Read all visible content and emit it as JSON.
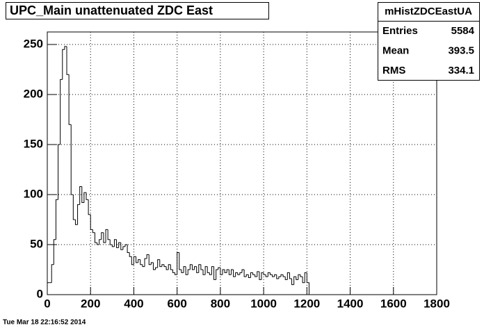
{
  "chart_data": {
    "type": "histogram",
    "title": "UPC_Main unattenuated ZDC East",
    "stats": {
      "name": "mHistZDCEastUA",
      "rows": [
        [
          "Entries",
          "5584"
        ],
        [
          "Mean",
          "393.5"
        ],
        [
          "RMS",
          "334.1"
        ]
      ]
    },
    "timestamp": "Tue Mar 18 22:16:52 2014",
    "color": "#000000",
    "grid": true,
    "xlim": [
      0,
      1800
    ],
    "xticks": [
      0,
      200,
      400,
      600,
      800,
      1000,
      1200,
      1400,
      1600,
      1800
    ],
    "ylim": [
      0,
      262.5
    ],
    "yticks": [
      0,
      50,
      100,
      150,
      200,
      250
    ],
    "bins": [
      0,
      10,
      20,
      30,
      40,
      50,
      60,
      70,
      80,
      90,
      100,
      110,
      120,
      130,
      140,
      150,
      160,
      170,
      180,
      190,
      200,
      210,
      220,
      230,
      240,
      250,
      260,
      270,
      280,
      290,
      300,
      310,
      320,
      330,
      340,
      350,
      360,
      370,
      380,
      390,
      400,
      410,
      420,
      430,
      440,
      450,
      460,
      470,
      480,
      490,
      500,
      510,
      520,
      530,
      540,
      550,
      560,
      570,
      580,
      590,
      600,
      610,
      620,
      630,
      640,
      650,
      660,
      670,
      680,
      690,
      700,
      710,
      720,
      730,
      740,
      750,
      760,
      770,
      780,
      790,
      800,
      810,
      820,
      830,
      840,
      850,
      860,
      870,
      880,
      890,
      900,
      910,
      920,
      930,
      940,
      950,
      960,
      970,
      980,
      990,
      1000,
      1010,
      1020,
      1030,
      1040,
      1050,
      1060,
      1070,
      1080,
      1090,
      1100,
      1110,
      1120,
      1130,
      1140,
      1150,
      1160,
      1170,
      1180,
      1190,
      1200,
      1210
    ],
    "values": [
      12,
      12,
      30,
      55,
      95,
      150,
      215,
      245,
      248,
      220,
      170,
      100,
      75,
      70,
      90,
      108,
      92,
      102,
      95,
      80,
      65,
      62,
      52,
      50,
      55,
      62,
      52,
      65,
      55,
      50,
      48,
      55,
      47,
      52,
      45,
      48,
      50,
      42,
      38,
      30,
      38,
      32,
      35,
      30,
      28,
      36,
      40,
      30,
      32,
      25,
      27,
      35,
      28,
      30,
      28,
      25,
      30,
      25,
      22,
      20,
      42,
      25,
      22,
      28,
      20,
      25,
      30,
      25,
      28,
      22,
      30,
      25,
      20,
      28,
      22,
      20,
      28,
      15,
      25,
      27,
      20,
      25,
      22,
      25,
      20,
      25,
      18,
      22,
      20,
      22,
      25,
      18,
      20,
      17,
      22,
      20,
      18,
      23,
      15,
      22,
      20,
      18,
      22,
      20,
      18,
      20,
      16,
      18,
      20,
      18,
      15,
      22,
      16,
      10,
      18,
      15,
      20,
      18,
      12,
      22,
      12
    ]
  }
}
